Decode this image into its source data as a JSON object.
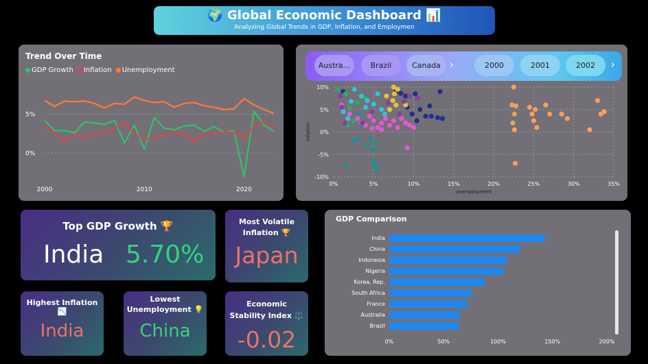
{
  "header": {
    "title": "Global Economic Dashboard",
    "title_emoji_left": "🌍",
    "title_emoji_right": "📊",
    "subtitle": "Analyzing Global Trends in GDP, Inflation, and Employmen"
  },
  "trend": {
    "title": "Trend Over Time",
    "legend": [
      {
        "label": "GDP Growth",
        "color": "#2ec26a"
      },
      {
        "label": "Inflation",
        "color": "#e0424a"
      },
      {
        "label": "Unemployment",
        "color": "#ff7a35"
      }
    ]
  },
  "slicer": {
    "countries": [
      "Austra...",
      "Brazil",
      "Canada"
    ],
    "years": [
      "2000",
      "2001",
      "2002"
    ],
    "next_icon": "chevron-right-icon"
  },
  "kpis": {
    "top_gdp": {
      "label": "Top GDP Growth",
      "icon": "🏆",
      "country": "India",
      "value": "5.70%"
    },
    "most_volatile": {
      "label": "Most Volatile Inflation",
      "icon": "🏆",
      "country": "Japan"
    },
    "highest_inflation": {
      "label": "Highest Inflation",
      "icon": "📉",
      "country": "India"
    },
    "lowest_unemployment": {
      "label": "Lowest Unemployment",
      "icon": "💡",
      "country": "China"
    },
    "stability": {
      "label": "Economic Stability Index",
      "icon": "⚖️",
      "value": "-0.02"
    }
  },
  "colors": {
    "accent_green": "#3ad07a",
    "accent_red": "#f0706a",
    "bar_blue": "#1e88f0",
    "panel": "#736f77"
  },
  "chart_data": [
    {
      "type": "line",
      "title": "Trend Over Time",
      "x": [
        2000,
        2001,
        2002,
        2003,
        2004,
        2005,
        2006,
        2007,
        2008,
        2009,
        2010,
        2011,
        2012,
        2013,
        2014,
        2015,
        2016,
        2017,
        2018,
        2019,
        2020,
        2021,
        2022,
        2023
      ],
      "x_ticks": [
        "2000",
        "2010",
        "2020"
      ],
      "y_ticks": [
        "0%",
        "5%"
      ],
      "ylim": [
        -3.5,
        8.5
      ],
      "xlim": [
        2000,
        2023
      ],
      "series": [
        {
          "name": "GDP Growth",
          "color": "#2ec26a",
          "values": [
            4.2,
            2.9,
            2.9,
            2.6,
            4.0,
            3.9,
            3.7,
            4.2,
            1.3,
            3.6,
            0.5,
            4.6,
            3.2,
            3.0,
            3.5,
            3.6,
            2.8,
            3.4,
            2.7,
            2.9,
            -3.1,
            5.4,
            3.6,
            2.8
          ]
        },
        {
          "name": "Inflation",
          "color": "#e0424a",
          "values": [
            3.5,
            2.6,
            1.4,
            2.4,
            1.9,
            2.4,
            2.6,
            3.2,
            4.0,
            2.5,
            1.8,
            2.0,
            2.4,
            2.7,
            2.5,
            1.5,
            2.4,
            2.5,
            2.7,
            2.7,
            1.9,
            3.5,
            4.0,
            3.2
          ]
        },
        {
          "name": "Unemployment",
          "color": "#ff7a35",
          "values": [
            6.8,
            6.0,
            6.7,
            6.6,
            6.7,
            6.4,
            5.8,
            6.4,
            6.3,
            7.2,
            6.8,
            6.5,
            6.6,
            5.9,
            6.4,
            6.5,
            6.1,
            5.9,
            5.6,
            5.7,
            7.0,
            6.2,
            5.6,
            5.1
          ]
        }
      ]
    },
    {
      "type": "scatter",
      "xlabel": "unemployment",
      "ylabel": "inflation",
      "xlim": [
        0,
        35
      ],
      "ylim": [
        -10,
        10
      ],
      "x_ticks": [
        "0%",
        "5%",
        "10%",
        "15%",
        "20%",
        "25%",
        "30%",
        "35%"
      ],
      "y_ticks": [
        "10%",
        "5%",
        "0%",
        "-5%",
        "-10%"
      ],
      "series": [
        {
          "name": "Orange",
          "color": "#f4a05a",
          "points": [
            [
              22.5,
              10
            ],
            [
              22.3,
              6
            ],
            [
              22.8,
              5.8
            ],
            [
              22.6,
              4
            ],
            [
              22.4,
              2
            ],
            [
              22.6,
              0.5
            ],
            [
              22.7,
              -7
            ],
            [
              24.5,
              5.5
            ],
            [
              24.8,
              4
            ],
            [
              25.0,
              2.5
            ],
            [
              25.2,
              5
            ],
            [
              25.4,
              1
            ],
            [
              26.5,
              6
            ],
            [
              27.0,
              4
            ],
            [
              28.5,
              4
            ],
            [
              29.2,
              3
            ],
            [
              32.0,
              0.5
            ],
            [
              33.0,
              7
            ],
            [
              33.4,
              4
            ],
            [
              33.8,
              4.5
            ]
          ]
        },
        {
          "name": "Navy",
          "color": "#20308a",
          "points": [
            [
              1.2,
              9
            ],
            [
              7.8,
              9
            ],
            [
              8.4,
              8.6
            ],
            [
              9.0,
              8
            ],
            [
              10.2,
              8.5
            ],
            [
              10.8,
              5
            ],
            [
              12,
              5.8
            ],
            [
              13.3,
              9
            ],
            [
              11.5,
              3.5
            ],
            [
              12.2,
              3.5
            ],
            [
              13.0,
              3.2
            ],
            [
              13.6,
              3
            ],
            [
              10.4,
              2.5
            ],
            [
              9.2,
              5.5
            ],
            [
              9.8,
              4
            ]
          ]
        },
        {
          "name": "Teal",
          "color": "#1f8f8f",
          "points": [
            [
              1.5,
              -7.5
            ],
            [
              2.5,
              -2
            ],
            [
              3.0,
              -1.5
            ],
            [
              4.2,
              -3
            ],
            [
              4.6,
              -1.5
            ],
            [
              5.0,
              -4
            ],
            [
              5.2,
              -2.5
            ],
            [
              5.0,
              -6.5
            ],
            [
              5.2,
              -7.5
            ],
            [
              5.4,
              -8.5
            ],
            [
              3.5,
              1.5
            ],
            [
              2.8,
              3
            ],
            [
              3.2,
              4
            ]
          ]
        },
        {
          "name": "Green",
          "color": "#2fa86a",
          "points": [
            [
              0.5,
              9.5
            ],
            [
              1.5,
              8.5
            ],
            [
              2.0,
              5.5
            ],
            [
              1.8,
              1.5
            ],
            [
              2.5,
              2.5
            ],
            [
              3.0,
              6.5
            ],
            [
              4.0,
              7.5
            ]
          ]
        },
        {
          "name": "Pink",
          "color": "#e25ad0",
          "points": [
            [
              1.0,
              6
            ],
            [
              2.0,
              4
            ],
            [
              3.0,
              3
            ],
            [
              3.5,
              2
            ],
            [
              4.0,
              1.5
            ],
            [
              4.5,
              3.5
            ],
            [
              5.0,
              2.5
            ],
            [
              5.5,
              1
            ],
            [
              6.0,
              2
            ],
            [
              6.5,
              3
            ],
            [
              7.0,
              1.5
            ],
            [
              7.5,
              2.5
            ],
            [
              8.0,
              1
            ],
            [
              8.5,
              3
            ],
            [
              9.0,
              2
            ],
            [
              9.5,
              1.5
            ],
            [
              10.0,
              1
            ],
            [
              6.0,
              0.5
            ],
            [
              4.8,
              0.8
            ],
            [
              9.2,
              -3.5
            ]
          ]
        },
        {
          "name": "Cyan",
          "color": "#2fc4d8",
          "points": [
            [
              1.2,
              4.5
            ],
            [
              2.6,
              9.5
            ],
            [
              3.5,
              8
            ],
            [
              4.2,
              7
            ],
            [
              5.0,
              6.2
            ],
            [
              5.5,
              8.5
            ],
            [
              6.0,
              5
            ],
            [
              6.4,
              4
            ],
            [
              4.0,
              5.5
            ],
            [
              2.2,
              6.8
            ],
            [
              1.8,
              3
            ]
          ]
        },
        {
          "name": "Yellow",
          "color": "#e6c23a",
          "points": [
            [
              7.5,
              10
            ],
            [
              7.6,
              8.5
            ],
            [
              7.4,
              7
            ],
            [
              8.0,
              9.5
            ],
            [
              7.8,
              6
            ],
            [
              7.0,
              5
            ],
            [
              6.6,
              8
            ],
            [
              9.0,
              6
            ]
          ]
        },
        {
          "name": "Violet",
          "color": "#8a3f9e",
          "points": [
            [
              0.8,
              8
            ],
            [
              1.0,
              5.5
            ],
            [
              1.4,
              2
            ],
            [
              3.6,
              2
            ],
            [
              4.8,
              4.5
            ],
            [
              6.8,
              6.5
            ],
            [
              8.2,
              4
            ],
            [
              8.8,
              6.8
            ],
            [
              9.5,
              8
            ],
            [
              10.5,
              7.5
            ]
          ]
        }
      ]
    },
    {
      "type": "bar",
      "orientation": "horizontal",
      "title": "GDP Comparison",
      "categories": [
        "India",
        "China",
        "Indonesia",
        "Nigeria",
        "Korea, Rep.",
        "South Africa",
        "France",
        "Australia",
        "Brazil"
      ],
      "values": [
        143,
        120,
        108,
        105,
        88,
        76,
        72,
        65,
        64
      ],
      "xlim": [
        0,
        200
      ],
      "x_ticks": [
        "0%",
        "50%",
        "100%",
        "150%",
        "200%"
      ]
    }
  ]
}
